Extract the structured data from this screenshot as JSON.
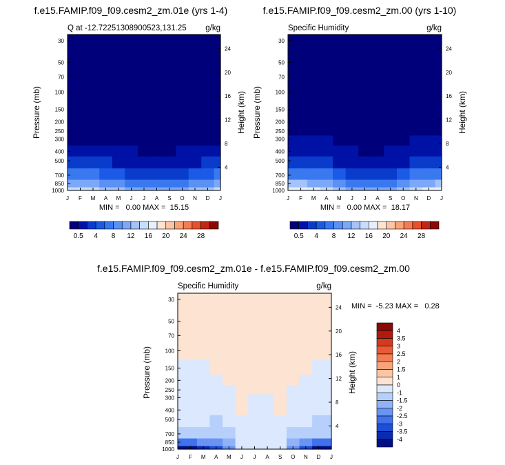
{
  "shared": {
    "y_pressure_ticks": [
      "30",
      "50",
      "70",
      "100",
      "150",
      "200",
      "250",
      "300",
      "400",
      "500",
      "700",
      "850",
      "1000"
    ],
    "y_height_ticks": [
      "24",
      "20",
      "16",
      "12",
      "8",
      "4"
    ],
    "month_ticks": [
      "J",
      "F",
      "M",
      "A",
      "M",
      "J",
      "J",
      "A",
      "S",
      "O",
      "N",
      "D",
      "J"
    ],
    "y_left_label": "Pressure (mb)",
    "y_right_label": "Height (km)"
  },
  "panels": [
    {
      "title": "f.e15.FAMIP.f09_f09.cesm2_zm.01e (yrs 1-4)",
      "left_string": "Q at -12.72251308900523,131.25",
      "right_string": "g/kg",
      "stats": "MIN =   0.00 MAX =  15.15"
    },
    {
      "title": "f.e15.FAMIP.f09_f09.cesm2_zm.00 (yrs 1-10)",
      "left_string": "Specific Humidity",
      "right_string": "g/kg",
      "stats": "MIN =   0.00 MAX =  18.17"
    },
    {
      "title": "f.e15.FAMIP.f09_f09.cesm2_zm.01e - f.e15.FAMIP.f09_f09.cesm2_zm.00",
      "left_string": "Specific Humidity",
      "right_string": "g/kg",
      "stats": "MIN =  -5.23 MAX =   0.28"
    }
  ],
  "colorbar_q": {
    "colors": [
      "#00007a",
      "#0012a6",
      "#0a3ccc",
      "#1a5ae6",
      "#3a78f0",
      "#5b90f5",
      "#7ca8f8",
      "#a4c3fa",
      "#c9dcfb",
      "#e6effd",
      "#fde3d2",
      "#fbc5a6",
      "#f9a278",
      "#f47c52",
      "#e6512d",
      "#c22614",
      "#8a0a05"
    ],
    "labels": [
      "0.5",
      "4",
      "8",
      "12",
      "16",
      "20",
      "24",
      "28"
    ],
    "label_positions": [
      1,
      3,
      5,
      7,
      9,
      11,
      13,
      15
    ]
  },
  "colorbar_diff": {
    "levels": [
      "4",
      "3.5",
      "3",
      "2.5",
      "2",
      "1.5",
      "1",
      "0",
      "-1",
      "-1.5",
      "-2",
      "-2.5",
      "-3",
      "-3.5",
      "-4"
    ],
    "colors": [
      "#8a0a05",
      "#b01a0d",
      "#d43a1f",
      "#ea5a34",
      "#f47c52",
      "#f9a278",
      "#fbc5a6",
      "#fde3d2",
      "#dbe8fd",
      "#b7cffb",
      "#8fb2f8",
      "#6a94f3",
      "#3f72ec",
      "#1c4ed7",
      "#0a2ab0",
      "#000f85"
    ]
  },
  "chart_data": [
    {
      "type": "heatmap",
      "title": "f.e15.FAMIP.f09_f09.cesm2_zm.01e (yrs 1-4)",
      "field": "Q at -12.72251308900523,131.25",
      "units": "g/kg",
      "xlabel": "",
      "ylabel": "Pressure (mb)",
      "ylabel_right": "Height (km)",
      "x": [
        "J",
        "F",
        "M",
        "A",
        "M",
        "J",
        "J",
        "A",
        "S",
        "O",
        "N",
        "D",
        "J"
      ],
      "y": [
        1000,
        850,
        700,
        500,
        400,
        300,
        250,
        200,
        150,
        100,
        70,
        50,
        30
      ],
      "levels": [
        0.5,
        2,
        4,
        6,
        8,
        10,
        12,
        14,
        16,
        18,
        20,
        22,
        24,
        26,
        28,
        30
      ],
      "values": [
        [
          14,
          14,
          14,
          13,
          12,
          11,
          10,
          10,
          10,
          11,
          12,
          13,
          14
        ],
        [
          10,
          10,
          10,
          9,
          8,
          7,
          6,
          6,
          6,
          7,
          8,
          9,
          10
        ],
        [
          6,
          6,
          6,
          5,
          4,
          3,
          2.5,
          2.5,
          2.5,
          3,
          4,
          5,
          6
        ],
        [
          2.5,
          2.5,
          2.5,
          2,
          1.5,
          1,
          0.8,
          0.8,
          0.8,
          1,
          1.5,
          2,
          2.5
        ],
        [
          1.2,
          1.2,
          1.2,
          1,
          0.8,
          0.5,
          0.4,
          0.4,
          0.4,
          0.5,
          0.8,
          1,
          1.2
        ],
        [
          0.4,
          0.4,
          0.4,
          0.3,
          0.2,
          0.1,
          0.1,
          0.1,
          0.1,
          0.1,
          0.2,
          0.3,
          0.4
        ],
        [
          0.1,
          0.1,
          0.1,
          0.1,
          0.1,
          0,
          0,
          0,
          0,
          0,
          0.1,
          0.1,
          0.1
        ],
        [
          0,
          0,
          0,
          0,
          0,
          0,
          0,
          0,
          0,
          0,
          0,
          0,
          0
        ],
        [
          0,
          0,
          0,
          0,
          0,
          0,
          0,
          0,
          0,
          0,
          0,
          0,
          0
        ],
        [
          0,
          0,
          0,
          0,
          0,
          0,
          0,
          0,
          0,
          0,
          0,
          0,
          0
        ],
        [
          0,
          0,
          0,
          0,
          0,
          0,
          0,
          0,
          0,
          0,
          0,
          0,
          0
        ],
        [
          0,
          0,
          0,
          0,
          0,
          0,
          0,
          0,
          0,
          0,
          0,
          0,
          0
        ],
        [
          0,
          0,
          0,
          0,
          0,
          0,
          0,
          0,
          0,
          0,
          0,
          0,
          0
        ]
      ]
    },
    {
      "type": "heatmap",
      "title": "f.e15.FAMIP.f09_f09.cesm2_zm.00 (yrs 1-10)",
      "field": "Specific Humidity",
      "units": "g/kg",
      "xlabel": "",
      "ylabel": "Pressure (mb)",
      "ylabel_right": "Height (km)",
      "x": [
        "J",
        "F",
        "M",
        "A",
        "M",
        "J",
        "J",
        "A",
        "S",
        "O",
        "N",
        "D",
        "J"
      ],
      "y": [
        1000,
        850,
        700,
        500,
        400,
        300,
        250,
        200,
        150,
        100,
        70,
        50,
        30
      ],
      "levels": [
        0.5,
        2,
        4,
        6,
        8,
        10,
        12,
        14,
        16,
        18,
        20,
        22,
        24,
        26,
        28,
        30
      ],
      "values": [
        [
          17,
          17,
          16,
          15,
          13,
          11,
          10,
          10,
          11,
          13,
          15,
          16,
          17
        ],
        [
          12,
          12,
          11,
          10,
          8,
          7,
          6,
          6,
          7,
          8,
          10,
          11,
          12
        ],
        [
          7,
          7,
          6.5,
          6,
          4.5,
          3,
          2.5,
          2.5,
          3,
          4.5,
          6,
          6.5,
          7
        ],
        [
          3,
          3,
          3,
          2.5,
          1.5,
          1,
          0.8,
          0.8,
          1,
          1.5,
          2.5,
          3,
          3
        ],
        [
          1.5,
          1.5,
          1.5,
          1.2,
          0.8,
          0.5,
          0.4,
          0.4,
          0.5,
          0.8,
          1.2,
          1.5,
          1.5
        ],
        [
          0.6,
          0.6,
          0.6,
          0.5,
          0.3,
          0.2,
          0.1,
          0.1,
          0.2,
          0.3,
          0.5,
          0.6,
          0.6
        ],
        [
          0.2,
          0.2,
          0.2,
          0.1,
          0.1,
          0,
          0,
          0,
          0,
          0.1,
          0.1,
          0.2,
          0.2
        ],
        [
          0,
          0,
          0,
          0,
          0,
          0,
          0,
          0,
          0,
          0,
          0,
          0,
          0
        ],
        [
          0,
          0,
          0,
          0,
          0,
          0,
          0,
          0,
          0,
          0,
          0,
          0,
          0
        ],
        [
          0,
          0,
          0,
          0,
          0,
          0,
          0,
          0,
          0,
          0,
          0,
          0,
          0
        ],
        [
          0,
          0,
          0,
          0,
          0,
          0,
          0,
          0,
          0,
          0,
          0,
          0,
          0
        ],
        [
          0,
          0,
          0,
          0,
          0,
          0,
          0,
          0,
          0,
          0,
          0,
          0,
          0
        ],
        [
          0,
          0,
          0,
          0,
          0,
          0,
          0,
          0,
          0,
          0,
          0,
          0,
          0
        ]
      ]
    },
    {
      "type": "heatmap",
      "title": "f.e15.FAMIP.f09_f09.cesm2_zm.01e - f.e15.FAMIP.f09_f09.cesm2_zm.00",
      "field": "Specific Humidity",
      "units": "g/kg",
      "xlabel": "",
      "ylabel": "Pressure (mb)",
      "ylabel_right": "Height (km)",
      "x": [
        "J",
        "F",
        "M",
        "A",
        "M",
        "J",
        "J",
        "A",
        "S",
        "O",
        "N",
        "D",
        "J"
      ],
      "y": [
        1000,
        850,
        700,
        500,
        400,
        300,
        250,
        200,
        150,
        100,
        70,
        50,
        30
      ],
      "levels": [
        -4,
        -3.5,
        -3,
        -2.5,
        -2,
        -1.5,
        -1,
        0,
        1,
        1.5,
        2,
        2.5,
        3,
        3.5,
        4
      ],
      "values": [
        [
          -4.5,
          -4.5,
          -4,
          -3.5,
          -2.5,
          -1,
          -0.5,
          -0.5,
          -0.5,
          -2.5,
          -3.5,
          -4.5,
          -4.5
        ],
        [
          -3,
          -3,
          -2.5,
          -2.5,
          -1.8,
          -1,
          -0.5,
          -0.5,
          -0.5,
          -1.8,
          -2.5,
          -3,
          -3
        ],
        [
          -1.2,
          -1.2,
          -1.2,
          -1.2,
          -1.1,
          -0.6,
          -0.4,
          -0.4,
          -0.4,
          -1.1,
          -1.2,
          -1.4,
          -1.4
        ],
        [
          -0.6,
          -0.6,
          -0.7,
          -1.1,
          -0.7,
          -0.5,
          -0.3,
          -0.3,
          -0.3,
          -0.5,
          -0.6,
          -1.1,
          -1.1
        ],
        [
          -0.5,
          -0.5,
          -0.5,
          -0.6,
          -0.5,
          0.1,
          -0.3,
          -0.2,
          0.1,
          -0.4,
          -0.5,
          -0.5,
          -0.6
        ],
        [
          -0.4,
          -0.4,
          -0.4,
          -0.4,
          -0.3,
          0.1,
          -0.2,
          -0.2,
          0.1,
          -0.3,
          -0.4,
          -0.4,
          -0.4
        ],
        [
          -0.3,
          -0.3,
          -0.3,
          -0.3,
          -0.3,
          0.1,
          0.1,
          0.1,
          0.1,
          -0.2,
          -0.3,
          -0.3,
          -0.3
        ],
        [
          -0.2,
          -0.2,
          -0.2,
          -0.2,
          0.1,
          0.1,
          0.1,
          0.1,
          0.1,
          0.1,
          -0.2,
          -0.2,
          -0.2
        ],
        [
          -0.1,
          -0.1,
          -0.1,
          0.1,
          0.1,
          0.1,
          0.1,
          0.1,
          0.1,
          0.1,
          0.1,
          -0.1,
          -0.1
        ],
        [
          0.1,
          0.1,
          0.1,
          0.1,
          0.1,
          0.1,
          0.1,
          0.1,
          0.1,
          0.1,
          0.1,
          0.1,
          0.1
        ],
        [
          0.1,
          0.1,
          0.1,
          0.1,
          0.1,
          0.1,
          0.1,
          0.1,
          0.1,
          0.1,
          0.1,
          0.1,
          0.1
        ],
        [
          0.1,
          0.1,
          0.1,
          0.1,
          0.1,
          0.1,
          0.1,
          0.1,
          0.1,
          0.1,
          0.1,
          0.1,
          0.1
        ],
        [
          0.1,
          0.1,
          0.1,
          0.1,
          0.1,
          0.1,
          0.1,
          0.1,
          0.1,
          0.1,
          0.1,
          0.1,
          0.1
        ]
      ]
    }
  ]
}
